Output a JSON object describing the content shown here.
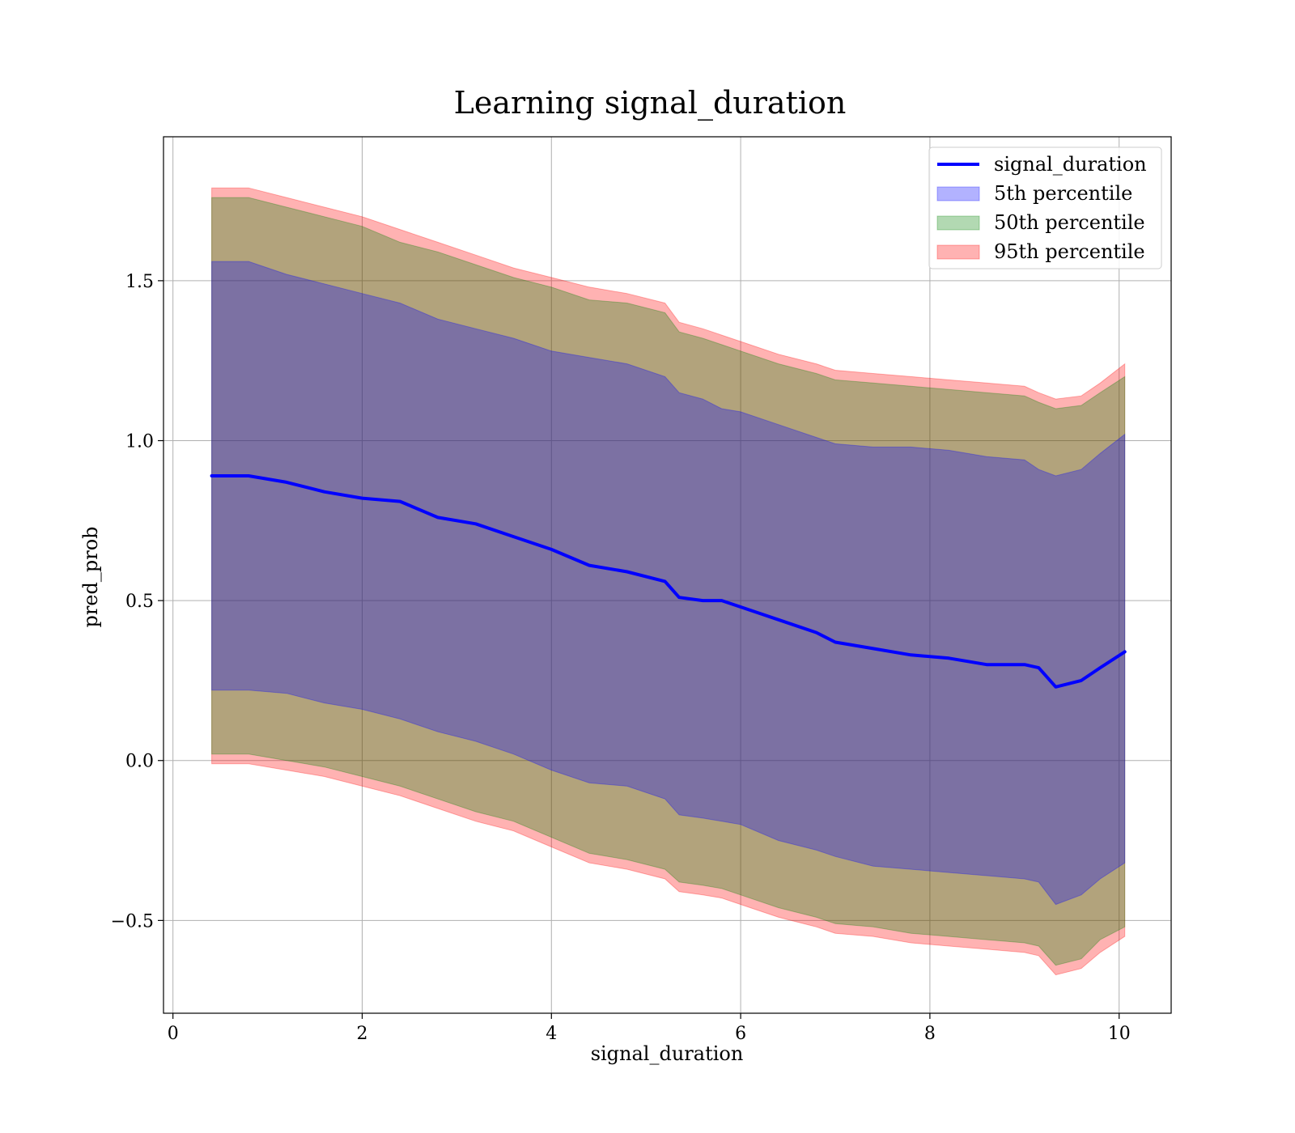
{
  "chart_data": {
    "type": "area",
    "title": "Learning signal_duration",
    "xlabel": "signal_duration",
    "ylabel": "pred_prob",
    "xlim": [
      -0.1,
      10.55
    ],
    "ylim": [
      -0.79,
      1.95
    ],
    "xticks": [
      0,
      2,
      4,
      6,
      8,
      10
    ],
    "xtick_labels": [
      "0",
      "2",
      "4",
      "6",
      "8",
      "10"
    ],
    "yticks": [
      -0.5,
      0.0,
      0.5,
      1.0,
      1.5
    ],
    "ytick_labels": [
      "−0.5",
      "0.0",
      "0.5",
      "1.0",
      "1.5"
    ],
    "grid": true,
    "legend_position": "top-right",
    "legend": [
      {
        "label": "signal_duration",
        "kind": "line",
        "color": "#0000ff"
      },
      {
        "label": "5th percentile",
        "kind": "patch",
        "color": "#0000ff",
        "alpha": 0.3
      },
      {
        "label": "50th percentile",
        "kind": "patch",
        "color": "#008000",
        "alpha": 0.3
      },
      {
        "label": "95th percentile",
        "kind": "patch",
        "color": "#ff0000",
        "alpha": 0.3
      }
    ],
    "x": [
      0.41,
      0.8,
      1.2,
      1.6,
      2.0,
      2.4,
      2.8,
      3.2,
      3.6,
      4.0,
      4.4,
      4.8,
      5.2,
      5.35,
      5.6,
      5.8,
      6.0,
      6.4,
      6.8,
      7.0,
      7.4,
      7.8,
      8.2,
      8.6,
      9.0,
      9.15,
      9.33,
      9.6,
      9.8,
      10.06
    ],
    "series": [
      {
        "name": "signal_duration",
        "color": "#0000ff",
        "values": [
          0.89,
          0.89,
          0.87,
          0.84,
          0.82,
          0.81,
          0.76,
          0.74,
          0.7,
          0.66,
          0.61,
          0.59,
          0.56,
          0.51,
          0.5,
          0.5,
          0.48,
          0.44,
          0.4,
          0.37,
          0.35,
          0.33,
          0.32,
          0.3,
          0.3,
          0.29,
          0.23,
          0.25,
          0.29,
          0.34
        ]
      }
    ],
    "bands": [
      {
        "name": "5th percentile",
        "color": "#0000ff",
        "alpha": 0.3,
        "lower": [
          0.22,
          0.22,
          0.21,
          0.18,
          0.16,
          0.13,
          0.09,
          0.06,
          0.02,
          -0.03,
          -0.07,
          -0.08,
          -0.12,
          -0.17,
          -0.18,
          -0.19,
          -0.2,
          -0.25,
          -0.28,
          -0.3,
          -0.33,
          -0.34,
          -0.35,
          -0.36,
          -0.37,
          -0.38,
          -0.45,
          -0.42,
          -0.37,
          -0.32
        ],
        "upper": [
          1.56,
          1.56,
          1.52,
          1.49,
          1.46,
          1.43,
          1.38,
          1.35,
          1.32,
          1.28,
          1.26,
          1.24,
          1.2,
          1.15,
          1.13,
          1.1,
          1.09,
          1.05,
          1.01,
          0.99,
          0.98,
          0.98,
          0.97,
          0.95,
          0.94,
          0.91,
          0.89,
          0.91,
          0.96,
          1.02
        ]
      },
      {
        "name": "50th percentile",
        "color": "#008000",
        "alpha": 0.3,
        "lower": [
          0.02,
          0.02,
          0.0,
          -0.02,
          -0.05,
          -0.08,
          -0.12,
          -0.16,
          -0.19,
          -0.24,
          -0.29,
          -0.31,
          -0.34,
          -0.38,
          -0.39,
          -0.4,
          -0.42,
          -0.46,
          -0.49,
          -0.51,
          -0.52,
          -0.54,
          -0.55,
          -0.56,
          -0.57,
          -0.58,
          -0.64,
          -0.62,
          -0.56,
          -0.52
        ],
        "upper": [
          1.76,
          1.76,
          1.73,
          1.7,
          1.67,
          1.62,
          1.59,
          1.55,
          1.51,
          1.48,
          1.44,
          1.43,
          1.4,
          1.34,
          1.32,
          1.3,
          1.28,
          1.24,
          1.21,
          1.19,
          1.18,
          1.17,
          1.16,
          1.15,
          1.14,
          1.12,
          1.1,
          1.11,
          1.15,
          1.2
        ]
      },
      {
        "name": "95th percentile",
        "color": "#ff0000",
        "alpha": 0.3,
        "lower": [
          -0.01,
          -0.01,
          -0.03,
          -0.05,
          -0.08,
          -0.11,
          -0.15,
          -0.19,
          -0.22,
          -0.27,
          -0.32,
          -0.34,
          -0.37,
          -0.41,
          -0.42,
          -0.43,
          -0.45,
          -0.49,
          -0.52,
          -0.54,
          -0.55,
          -0.57,
          -0.58,
          -0.59,
          -0.6,
          -0.61,
          -0.67,
          -0.65,
          -0.6,
          -0.55
        ],
        "upper": [
          1.79,
          1.79,
          1.76,
          1.73,
          1.7,
          1.66,
          1.62,
          1.58,
          1.54,
          1.51,
          1.48,
          1.46,
          1.43,
          1.37,
          1.35,
          1.33,
          1.31,
          1.27,
          1.24,
          1.22,
          1.21,
          1.2,
          1.19,
          1.18,
          1.17,
          1.15,
          1.13,
          1.14,
          1.18,
          1.24
        ]
      }
    ]
  }
}
